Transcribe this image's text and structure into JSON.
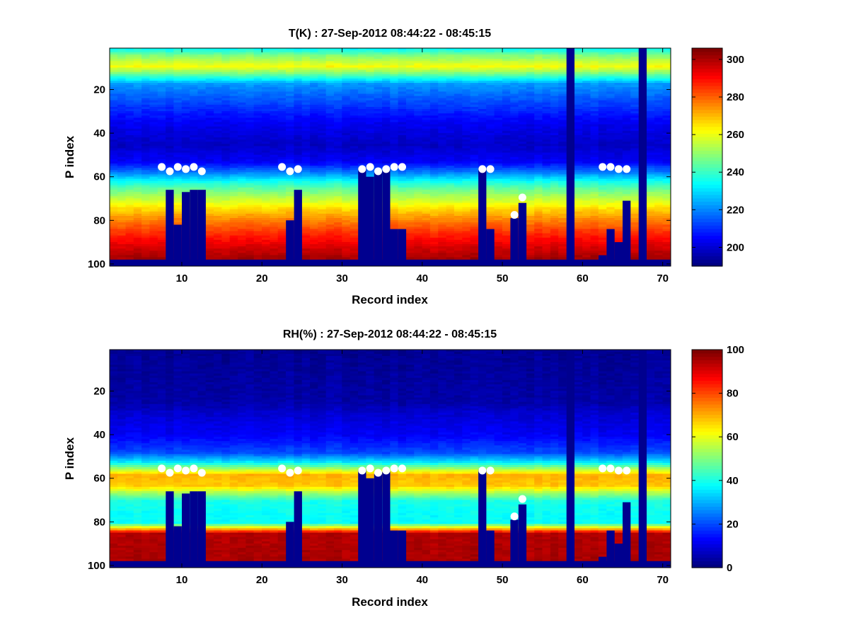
{
  "figure": {
    "background": "#ffffff"
  },
  "chart_data": [
    {
      "type": "heatmap",
      "title": "T(K) : 27-Sep-2012 08:44:22 - 08:45:15",
      "xlabel": "Record index",
      "ylabel": "P index",
      "xlim": [
        1,
        71
      ],
      "ylim": [
        1,
        101
      ],
      "y_reversed": true,
      "xticks": [
        10,
        20,
        30,
        40,
        50,
        60,
        70
      ],
      "yticks": [
        20,
        40,
        60,
        80,
        100
      ],
      "colormap": "jet",
      "colorbar": {
        "range": [
          190,
          306
        ],
        "ticks": [
          200,
          220,
          240,
          260,
          280,
          300
        ]
      },
      "fill_value_color": "#00008f",
      "rows": 100,
      "records": 70,
      "profile": {
        "tropopause_index": 10,
        "level_values": [
          [
            1,
            235
          ],
          [
            4,
            248
          ],
          [
            9,
            262
          ],
          [
            12,
            248
          ],
          [
            17,
            222
          ],
          [
            25,
            213
          ],
          [
            35,
            203
          ],
          [
            45,
            198
          ],
          [
            53,
            204
          ],
          [
            58,
            220
          ],
          [
            62,
            236
          ],
          [
            66,
            247
          ],
          [
            70,
            256
          ],
          [
            74,
            266
          ],
          [
            78,
            274
          ],
          [
            82,
            281
          ],
          [
            87,
            289
          ],
          [
            92,
            296
          ],
          [
            97,
            302
          ],
          [
            100,
            303
          ]
        ]
      },
      "fill_columns": [
        58,
        67
      ],
      "bottom_fill_row": 98,
      "surface_fill_from_row": {
        "8": 66,
        "9": 82,
        "10": 67,
        "11": 66,
        "12": 66,
        "23": 80,
        "24": 66,
        "32": 56,
        "33": 60,
        "34": 58,
        "35": 57,
        "36": 84,
        "37": 84,
        "47": 56,
        "48": 84,
        "51": 79,
        "52": 72,
        "62": 96,
        "63": 84,
        "64": 90,
        "65": 71
      },
      "markers": [
        [
          7,
          55
        ],
        [
          8,
          57
        ],
        [
          9,
          55
        ],
        [
          10,
          56
        ],
        [
          11,
          55
        ],
        [
          12,
          57
        ],
        [
          22,
          55
        ],
        [
          23,
          57
        ],
        [
          24,
          56
        ],
        [
          32,
          56
        ],
        [
          33,
          55
        ],
        [
          34,
          57
        ],
        [
          35,
          56
        ],
        [
          36,
          55
        ],
        [
          37,
          55
        ],
        [
          47,
          56
        ],
        [
          48,
          56
        ],
        [
          51,
          77
        ],
        [
          52,
          69
        ],
        [
          62,
          55
        ],
        [
          63,
          55
        ],
        [
          64,
          56
        ],
        [
          65,
          56
        ]
      ],
      "marker_color": "#ffffff"
    },
    {
      "type": "heatmap",
      "title": "RH(%) : 27-Sep-2012 08:44:22 - 08:45:15",
      "xlabel": "Record index",
      "ylabel": "P index",
      "xlim": [
        1,
        71
      ],
      "ylim": [
        1,
        101
      ],
      "y_reversed": true,
      "xticks": [
        10,
        20,
        30,
        40,
        50,
        60,
        70
      ],
      "yticks": [
        20,
        40,
        60,
        80,
        100
      ],
      "colormap": "jet",
      "colorbar": {
        "range": [
          0,
          100
        ],
        "ticks": [
          0,
          20,
          40,
          60,
          80,
          100
        ]
      },
      "fill_value_color": "#00008f",
      "rows": 100,
      "records": 70,
      "profile": {
        "level_values": [
          [
            1,
            2
          ],
          [
            25,
            4
          ],
          [
            30,
            8
          ],
          [
            40,
            12
          ],
          [
            48,
            20
          ],
          [
            52,
            35
          ],
          [
            55,
            52
          ],
          [
            58,
            70
          ],
          [
            63,
            68
          ],
          [
            66,
            55
          ],
          [
            70,
            40
          ],
          [
            76,
            38
          ],
          [
            80,
            38
          ],
          [
            82,
            60
          ],
          [
            85,
            95
          ],
          [
            100,
            96
          ]
        ]
      },
      "fill_columns": [
        58,
        67
      ],
      "bottom_fill_row": 98,
      "surface_fill_from_row": {
        "8": 66,
        "9": 82,
        "10": 67,
        "11": 66,
        "12": 66,
        "23": 80,
        "24": 66,
        "32": 56,
        "33": 60,
        "34": 58,
        "35": 57,
        "36": 84,
        "37": 84,
        "47": 56,
        "48": 84,
        "51": 79,
        "52": 72,
        "62": 96,
        "63": 84,
        "64": 90,
        "65": 71
      },
      "markers": [
        [
          7,
          55
        ],
        [
          8,
          57
        ],
        [
          9,
          55
        ],
        [
          10,
          56
        ],
        [
          11,
          55
        ],
        [
          12,
          57
        ],
        [
          22,
          55
        ],
        [
          23,
          57
        ],
        [
          24,
          56
        ],
        [
          32,
          56
        ],
        [
          33,
          55
        ],
        [
          34,
          57
        ],
        [
          35,
          56
        ],
        [
          36,
          55
        ],
        [
          37,
          55
        ],
        [
          47,
          56
        ],
        [
          48,
          56
        ],
        [
          51,
          77
        ],
        [
          52,
          69
        ],
        [
          62,
          55
        ],
        [
          63,
          55
        ],
        [
          64,
          56
        ],
        [
          65,
          56
        ]
      ],
      "marker_color": "#ffffff"
    }
  ]
}
